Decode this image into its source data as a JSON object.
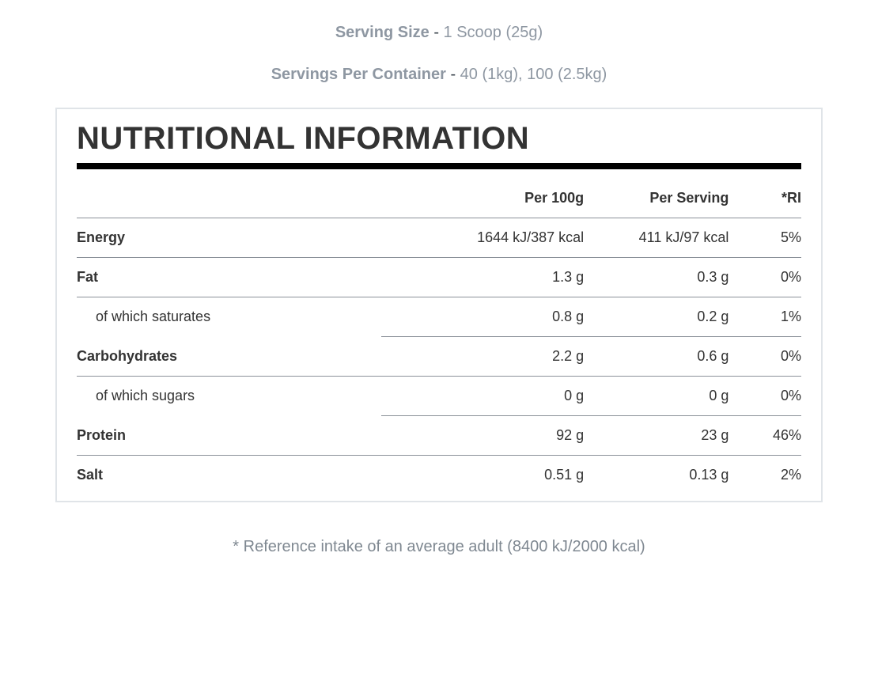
{
  "serving_size": {
    "label": "Serving Size",
    "value": "1 Scoop (25g)"
  },
  "servings_per": {
    "label": "Servings Per Container",
    "value": "40 (1kg), 100 (2.5kg)"
  },
  "panel_title": "NUTRITIONAL INFORMATION",
  "columns": {
    "per100": "Per 100g",
    "perserv": "Per Serving",
    "ri": "*RI"
  },
  "rows": [
    {
      "name": "Energy",
      "per100": "1644 kJ/387 kcal",
      "perserv": "411 kJ/97 kcal",
      "ri": "5%",
      "sub": false
    },
    {
      "name": "Fat",
      "per100": "1.3 g",
      "perserv": "0.3 g",
      "ri": "0%",
      "sub": false
    },
    {
      "name": "of which saturates",
      "per100": "0.8 g",
      "perserv": "0.2 g",
      "ri": "1%",
      "sub": true
    },
    {
      "name": "Carbohydrates",
      "per100": "2.2 g",
      "perserv": "0.6 g",
      "ri": "0%",
      "sub": false
    },
    {
      "name": "of which sugars",
      "per100": "0 g",
      "perserv": "0 g",
      "ri": "0%",
      "sub": true
    },
    {
      "name": "Protein",
      "per100": "92 g",
      "perserv": "23 g",
      "ri": "46%",
      "sub": false
    },
    {
      "name": "Salt",
      "per100": "0.51 g",
      "perserv": "0.13 g",
      "ri": "2%",
      "sub": false
    }
  ],
  "footnote": "* Reference intake of an average adult (8400 kJ/2000 kcal)",
  "style": {
    "body_bg": "#ffffff",
    "muted_text": "#8e97a2",
    "text": "#333333",
    "grey_text": "#7f8891",
    "rule_color": "#8b9199",
    "panel_border": "#e0e4e8",
    "title_underline": "#000000",
    "title_fontsize": 40,
    "body_fontsize": 18,
    "serving_fontsize": 20,
    "footnote_fontsize": 20
  }
}
